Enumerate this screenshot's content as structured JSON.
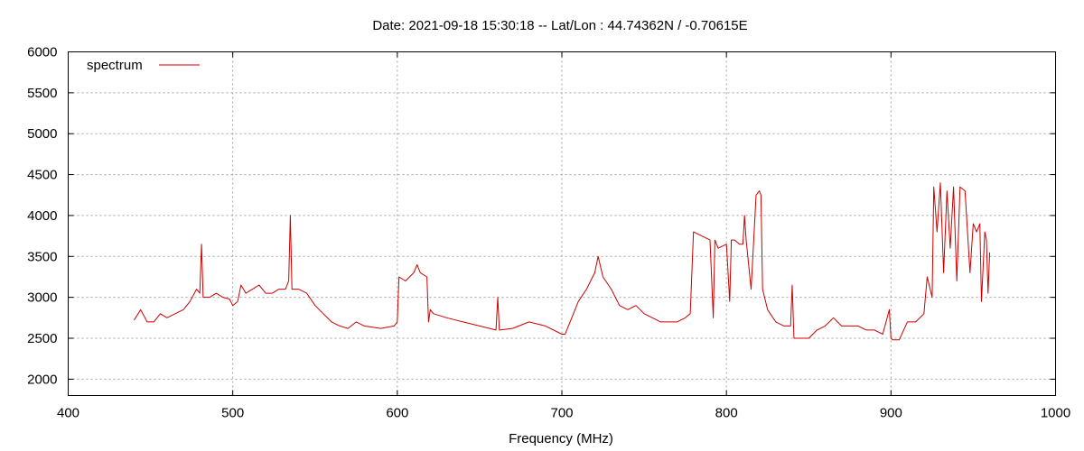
{
  "chart_data": {
    "type": "line",
    "title": "Date: 2021-09-18 15:30:18  --  Lat/Lon : 44.74362N / -0.70615E",
    "xlabel": "Frequency (MHz)",
    "ylabel": "",
    "xlim": [
      400,
      1000
    ],
    "ylim": [
      1800,
      6000
    ],
    "xticks": [
      400,
      500,
      600,
      700,
      800,
      900,
      1000
    ],
    "yticks": [
      2000,
      2500,
      3000,
      3500,
      4000,
      4500,
      5000,
      5500,
      6000
    ],
    "grid": true,
    "legend_position": "top-left",
    "series": [
      {
        "name": "spectrum",
        "color": "#cc0000",
        "x": [
          440,
          444,
          448,
          452,
          456,
          460,
          465,
          470,
          474,
          478,
          480,
          481,
          482,
          486,
          490,
          494,
          498,
          500,
          503,
          505,
          508,
          512,
          516,
          520,
          524,
          528,
          532,
          534,
          535,
          536,
          540,
          545,
          550,
          555,
          560,
          565,
          570,
          575,
          580,
          590,
          598,
          600,
          601,
          605,
          610,
          612,
          614,
          618,
          619,
          620,
          622,
          630,
          640,
          650,
          660,
          661,
          662,
          670,
          680,
          690,
          700,
          702,
          705,
          710,
          715,
          720,
          722,
          725,
          730,
          735,
          740,
          745,
          750,
          755,
          760,
          765,
          770,
          775,
          778,
          780,
          785,
          790,
          792,
          793,
          795,
          800,
          802,
          803,
          805,
          808,
          810,
          811,
          812,
          815,
          818,
          820,
          821,
          822,
          825,
          830,
          835,
          839,
          840,
          841,
          845,
          850,
          855,
          860,
          865,
          870,
          880,
          885,
          890,
          895,
          899,
          900,
          901,
          905,
          910,
          912,
          915,
          920,
          922,
          925,
          926,
          928,
          930,
          932,
          934,
          936,
          938,
          940,
          942,
          945,
          948,
          950,
          952,
          954,
          955,
          957,
          958,
          959,
          960
        ],
        "y": [
          2720,
          2850,
          2700,
          2700,
          2800,
          2750,
          2800,
          2850,
          2950,
          3100,
          3050,
          3650,
          3000,
          3000,
          3050,
          3000,
          2980,
          2900,
          2950,
          3150,
          3050,
          3100,
          3150,
          3050,
          3050,
          3100,
          3100,
          3200,
          4000,
          3100,
          3100,
          3050,
          2900,
          2800,
          2700,
          2650,
          2620,
          2700,
          2650,
          2620,
          2650,
          2700,
          3250,
          3200,
          3300,
          3400,
          3300,
          3250,
          2700,
          2850,
          2800,
          2750,
          2700,
          2650,
          2600,
          3000,
          2600,
          2620,
          2700,
          2650,
          2550,
          2550,
          2700,
          2950,
          3100,
          3300,
          3500,
          3250,
          3100,
          2900,
          2850,
          2900,
          2800,
          2750,
          2700,
          2700,
          2700,
          2750,
          2800,
          3800,
          3750,
          3700,
          2750,
          3700,
          3600,
          3650,
          2950,
          3700,
          3700,
          3650,
          3650,
          4000,
          3700,
          3100,
          4250,
          4300,
          4250,
          3100,
          2850,
          2700,
          2650,
          2650,
          3150,
          2500,
          2500,
          2500,
          2600,
          2650,
          2750,
          2650,
          2650,
          2600,
          2600,
          2550,
          2850,
          2500,
          2480,
          2480,
          2700,
          2700,
          2700,
          2800,
          3250,
          3000,
          4350,
          3800,
          4400,
          3300,
          4300,
          3600,
          4350,
          3200,
          4350,
          4300,
          3300,
          3900,
          3800,
          3900,
          2950,
          3800,
          3700,
          3050,
          3550
        ]
      }
    ]
  }
}
